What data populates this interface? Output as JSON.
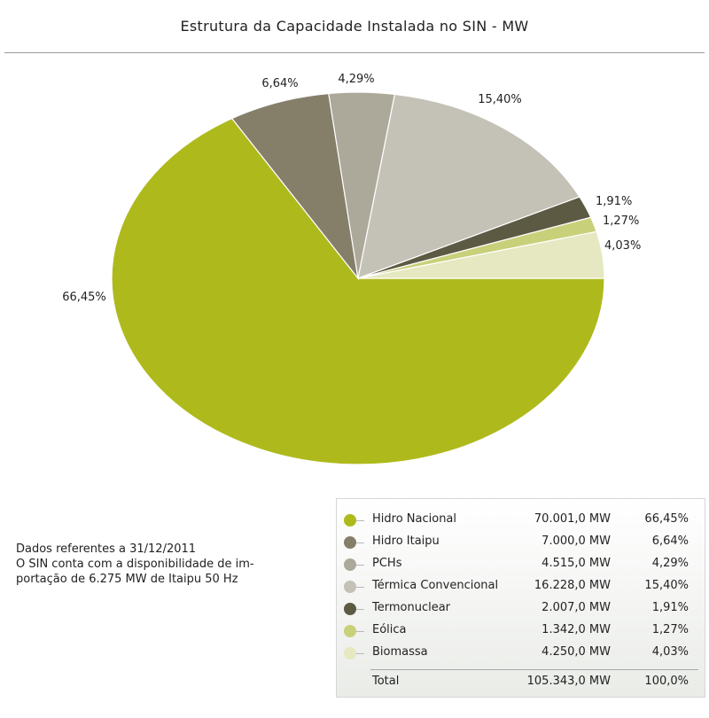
{
  "chart_data": {
    "type": "pie",
    "title": "Estrutura da Capacidade Instalada no SIN - MW",
    "slices": [
      {
        "label": "Hidro Nacional",
        "value": 70001.0,
        "value_text": "70.001,0 MW",
        "percent_text": "66,45%",
        "percent": 66.45,
        "color": "#aeba1c"
      },
      {
        "label": "Hidro Itaipu",
        "value": 7000.0,
        "value_text": "7.000,0 MW",
        "percent_text": "6,64%",
        "percent": 6.64,
        "color": "#857f6a"
      },
      {
        "label": "PCHs",
        "value": 4515.0,
        "value_text": "4.515,0 MW",
        "percent_text": "4,29%",
        "percent": 4.29,
        "color": "#aca99a"
      },
      {
        "label": "Térmica Convencional",
        "value": 16228.0,
        "value_text": "16.228,0 MW",
        "percent_text": "15,40%",
        "percent": 15.4,
        "color": "#c4c2b6"
      },
      {
        "label": "Termonuclear",
        "value": 2007.0,
        "value_text": "2.007,0 MW",
        "percent_text": "1,91%",
        "percent": 1.91,
        "color": "#5c5a43"
      },
      {
        "label": "Eólica",
        "value": 1342.0,
        "value_text": "1.342,0 MW",
        "percent_text": "1,27%",
        "percent": 1.27,
        "color": "#c9d07a"
      },
      {
        "label": "Biomassa",
        "value": 4250.0,
        "value_text": "4.250,0 MW",
        "percent_text": "4,03%",
        "percent": 4.03,
        "color": "#e5e8c0"
      }
    ],
    "total": {
      "label": "Total",
      "value_text": "105.343,0 MW",
      "percent_text": "100,0%"
    }
  },
  "note": {
    "line1": "Dados referentes a 31/12/2011",
    "line2": "O SIN conta com a disponibilidade de im-",
    "line3": "portação de 6.275 MW de Itaipu 50 Hz"
  }
}
